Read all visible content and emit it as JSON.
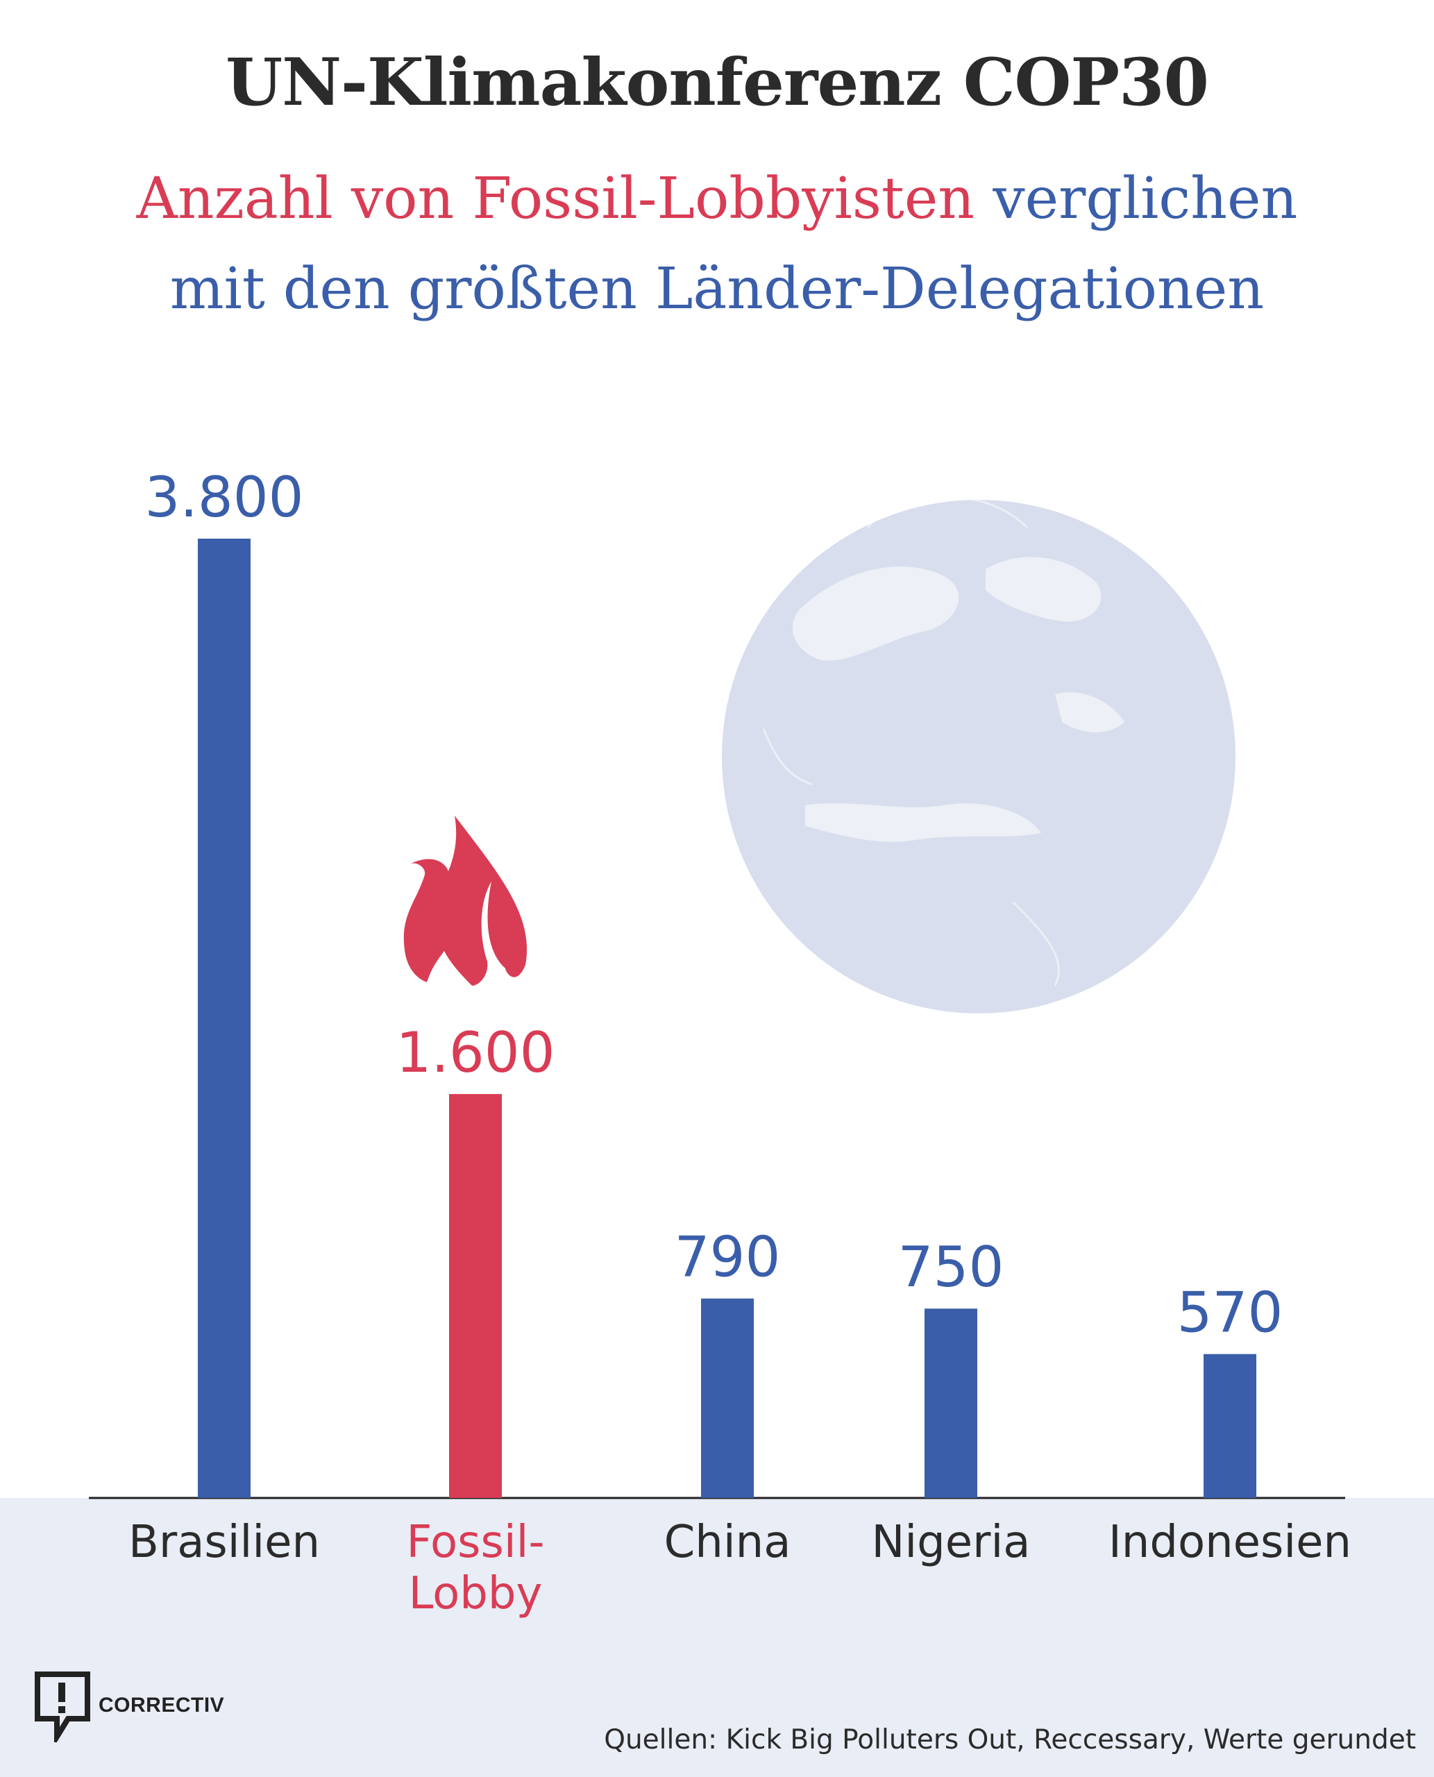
{
  "header": {
    "title": "UN-Klimakonferenz COP30",
    "subtitle_red": "Anzahl von Fossil-Lobbyisten",
    "subtitle_blue_1": "verglichen",
    "subtitle_blue_2": "mit den größten Länder-Delegationen"
  },
  "colors": {
    "blue": "#3a5ea9",
    "red": "#d93c55",
    "globe": "#d8deed",
    "footer_band": "#e9edf5"
  },
  "chart_data": {
    "type": "bar",
    "categories": [
      "Brasilien",
      "Fossil-Lobby",
      "China",
      "Nigeria",
      "Indonesien"
    ],
    "values": [
      3800,
      1600,
      790,
      750,
      570
    ],
    "value_labels": [
      "3.800",
      "1.600",
      "790",
      "750",
      "570"
    ],
    "highlight_category": "Fossil-Lobby",
    "ylim": [
      0,
      3800
    ],
    "grid": false,
    "legend": "none"
  },
  "icons": [
    "flame-icon",
    "globe-icon",
    "correctiv-logo-icon"
  ],
  "logo": {
    "text": "CORRECTIV"
  },
  "footer": {
    "sources": "Quellen: Kick Big Polluters Out, Reccessary, Werte gerundet"
  }
}
